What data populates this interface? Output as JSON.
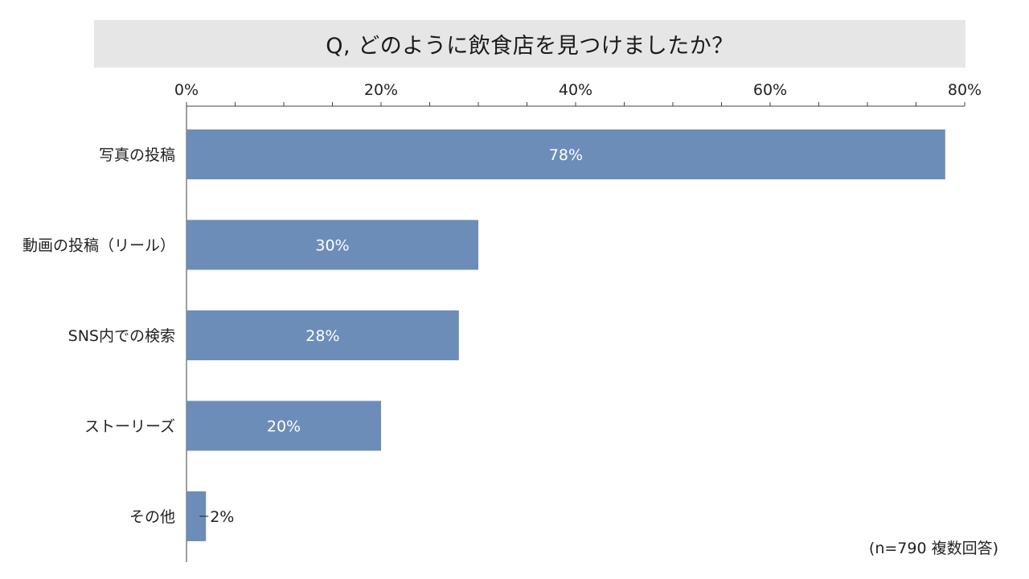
{
  "title": "Q, どのように飲食店を見つけましたか？",
  "note": "(n=790 複数回答)",
  "colors": {
    "bar": "#6d8db9",
    "title_bg": "#e6e6e6",
    "axis": "#404040",
    "label_inside": "#ffffff",
    "label_outside": "#222222"
  },
  "chart_data": {
    "type": "bar",
    "orientation": "horizontal",
    "title": "Q, どのように飲食店を見つけましたか？",
    "categories": [
      "写真の投稿",
      "動画の投稿（リール）",
      "SNS内での検索",
      "ストーリーズ",
      "その他"
    ],
    "values": [
      78,
      30,
      28,
      20,
      2
    ],
    "data_labels": [
      "78%",
      "30%",
      "28%",
      "20%",
      "2%"
    ],
    "xlim": [
      0,
      80
    ],
    "x_ticks": [
      0,
      20,
      40,
      60,
      80
    ],
    "x_tick_labels": [
      "0%",
      "20%",
      "40%",
      "60%",
      "80%"
    ],
    "x_axis_position": "top",
    "grid": false,
    "legend": "none"
  }
}
